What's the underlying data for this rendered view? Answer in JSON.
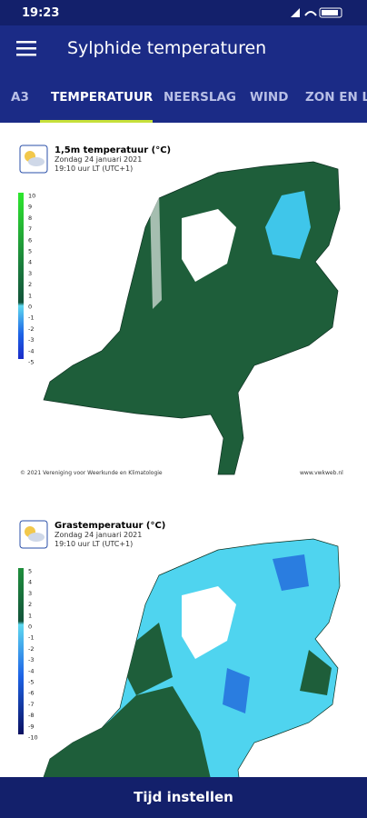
{
  "status_bar": {
    "time": "19:23"
  },
  "app_bar": {
    "title": "Sylphide temperaturen"
  },
  "tabs": [
    "A3",
    "TEMPERATUUR",
    "NEERSLAG",
    "WIND",
    "ZON EN LU"
  ],
  "active_tab": 1,
  "maps": [
    {
      "title": "1,5m temperatuur (°C)",
      "date": "Zondag 24 januari 2021",
      "time": "19:10 uur LT (UTC+1)",
      "legend_ticks": [
        10,
        9,
        8,
        7,
        6,
        5,
        4,
        3,
        2,
        1,
        0,
        -1,
        -2,
        -3,
        -4,
        -5
      ],
      "copyright": "© 2021 Vereniging voor Weerkunde en Klimatologie",
      "website": "www.vwkweb.nl"
    },
    {
      "title": "Grastemperatuur (°C)",
      "date": "Zondag 24 januari 2021",
      "time": "19:10 uur LT (UTC+1)",
      "legend_ticks": [
        5,
        4,
        3,
        2,
        1,
        0,
        -1,
        -2,
        -3,
        -4,
        -5,
        -6,
        -7,
        -8,
        -9,
        -10
      ]
    }
  ],
  "button": "Tijd instellen"
}
